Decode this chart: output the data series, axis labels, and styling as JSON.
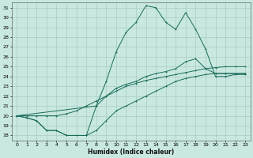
{
  "xlabel": "Humidex (Indice chaleur)",
  "bg_color": "#c8e8e0",
  "grid_color": "#aaccc4",
  "line_color": "#1a6b5a",
  "xlim": [
    -0.5,
    23.5
  ],
  "ylim": [
    17.5,
    31.5
  ],
  "yticks": [
    18,
    19,
    20,
    21,
    22,
    23,
    24,
    25,
    26,
    27,
    28,
    29,
    30,
    31
  ],
  "xticks": [
    0,
    1,
    2,
    3,
    4,
    5,
    6,
    7,
    8,
    9,
    10,
    11,
    12,
    13,
    14,
    15,
    16,
    17,
    18,
    19,
    20,
    21,
    22,
    23
  ],
  "line1_x": [
    0,
    1,
    2,
    3,
    4,
    5,
    6,
    7,
    8,
    9,
    10,
    11,
    12,
    13,
    14,
    15,
    16,
    17,
    18,
    19,
    20,
    21,
    22,
    23
  ],
  "line1_y": [
    20.0,
    19.8,
    19.5,
    18.5,
    18.5,
    18.0,
    18.0,
    18.0,
    21.0,
    23.5,
    26.5,
    28.5,
    29.5,
    31.2,
    31.0,
    29.5,
    28.8,
    30.5,
    28.8,
    26.8,
    24.0,
    24.0,
    24.2,
    24.2
  ],
  "line2_x": [
    0,
    1,
    2,
    3,
    4,
    5,
    6,
    7,
    8,
    9,
    10,
    11,
    12,
    13,
    14,
    15,
    16,
    17,
    18,
    19,
    20,
    21,
    22,
    23
  ],
  "line2_y": [
    20.0,
    20.0,
    20.0,
    20.0,
    20.0,
    20.2,
    20.5,
    21.0,
    21.5,
    22.0,
    22.5,
    23.0,
    23.3,
    23.6,
    23.8,
    24.0,
    24.2,
    24.4,
    24.6,
    24.8,
    24.9,
    25.0,
    25.0,
    25.0
  ],
  "line3_x": [
    0,
    1,
    2,
    3,
    4,
    5,
    6,
    7,
    8,
    9,
    10,
    11,
    12,
    13,
    14,
    15,
    16,
    17,
    18,
    19,
    20,
    21,
    22,
    23
  ],
  "line3_y": [
    20.0,
    19.8,
    19.5,
    18.5,
    18.5,
    18.0,
    18.0,
    18.0,
    18.5,
    19.5,
    20.5,
    21.0,
    21.5,
    22.0,
    22.5,
    23.0,
    23.5,
    23.8,
    24.0,
    24.2,
    24.3,
    24.3,
    24.3,
    24.3
  ],
  "line4_x": [
    0,
    8,
    9,
    10,
    11,
    12,
    13,
    14,
    15,
    16,
    17,
    18,
    19,
    20,
    21,
    22,
    23
  ],
  "line4_y": [
    20.0,
    21.0,
    22.0,
    22.8,
    23.2,
    23.5,
    24.0,
    24.3,
    24.5,
    24.8,
    25.5,
    25.8,
    24.8,
    24.3,
    24.3,
    24.3,
    24.3
  ]
}
